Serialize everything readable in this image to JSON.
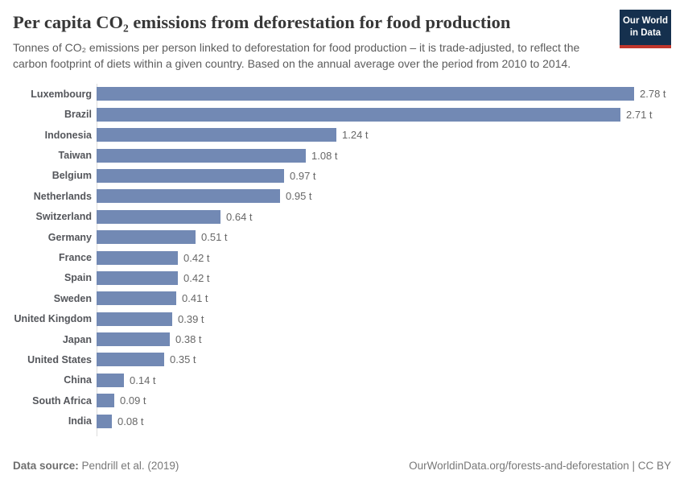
{
  "header": {
    "title": "Per capita CO₂ emissions from deforestation for food production",
    "subtitle": "Tonnes of CO₂ emissions per person linked to deforestation for food production – it is trade-adjusted, to reflect the carbon footprint of diets within a given country. Based on the annual average over the period from 2010 to 2014.",
    "logo_line1": "Our World",
    "logo_line2": "in Data"
  },
  "chart_data": {
    "type": "bar",
    "orientation": "horizontal",
    "title": "Per capita CO₂ emissions from deforestation for food production",
    "unit": "t",
    "xlim": [
      0,
      2.78
    ],
    "grid": false,
    "bar_color": "#7289b4",
    "categories": [
      "Luxembourg",
      "Brazil",
      "Indonesia",
      "Taiwan",
      "Belgium",
      "Netherlands",
      "Switzerland",
      "Germany",
      "France",
      "Spain",
      "Sweden",
      "United Kingdom",
      "Japan",
      "United States",
      "China",
      "South Africa",
      "India"
    ],
    "values": [
      2.78,
      2.71,
      1.24,
      1.08,
      0.97,
      0.95,
      0.64,
      0.51,
      0.42,
      0.42,
      0.41,
      0.39,
      0.38,
      0.35,
      0.14,
      0.09,
      0.08
    ],
    "value_labels": [
      "2.78 t",
      "2.71 t",
      "1.24 t",
      "1.08 t",
      "0.97 t",
      "0.95 t",
      "0.64 t",
      "0.51 t",
      "0.42 t",
      "0.42 t",
      "0.41 t",
      "0.39 t",
      "0.38 t",
      "0.35 t",
      "0.14 t",
      "0.09 t",
      "0.08 t"
    ]
  },
  "footer": {
    "data_source_label": "Data source:",
    "data_source_value": " Pendrill et al. (2019)",
    "link": "OurWorldinData.org/forests-and-deforestation | CC BY"
  },
  "colors": {
    "bar": "#7289b4",
    "axis": "#dcdcdc",
    "logo_navy": "#15304e",
    "logo_red": "#c0362c"
  }
}
